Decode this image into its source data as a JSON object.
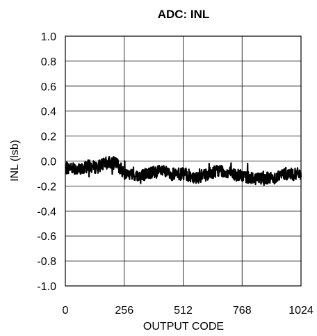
{
  "chart_data": {
    "type": "line",
    "title": "ADC: INL",
    "xlabel": "OUTPUT CODE",
    "ylabel": "INL (lsb)",
    "xlim": [
      0,
      1024
    ],
    "ylim": [
      -1.0,
      1.0
    ],
    "xticks": [
      0,
      256,
      512,
      768,
      1024
    ],
    "xtick_labels": [
      "0",
      "256",
      "512",
      "768",
      "1024"
    ],
    "yticks": [
      1.0,
      0.8,
      0.6,
      0.4,
      0.2,
      0.0,
      -0.2,
      -0.4,
      -0.6,
      -0.8,
      -1.0
    ],
    "ytick_labels": [
      "1.0",
      "0.8",
      "0.6",
      "0.4",
      "0.2",
      "0.0",
      "-0.2",
      "-0.4",
      "-0.6",
      "-0.8",
      "-1.0"
    ],
    "grid": true,
    "legend": "none",
    "series": [
      {
        "color": "#000000",
        "x": [
          0,
          32,
          64,
          96,
          128,
          160,
          192,
          224,
          256,
          288,
          320,
          352,
          384,
          416,
          448,
          480,
          512,
          544,
          576,
          608,
          640,
          672,
          704,
          736,
          768,
          800,
          832,
          864,
          896,
          928,
          960,
          992,
          1024
        ],
        "y": [
          -0.06,
          -0.05,
          -0.07,
          -0.04,
          -0.05,
          -0.03,
          -0.01,
          -0.02,
          -0.1,
          -0.11,
          -0.12,
          -0.1,
          -0.09,
          -0.08,
          -0.1,
          -0.11,
          -0.1,
          -0.12,
          -0.13,
          -0.11,
          -0.09,
          -0.07,
          -0.09,
          -0.11,
          -0.12,
          -0.13,
          -0.14,
          -0.13,
          -0.14,
          -0.12,
          -0.1,
          -0.11,
          -0.1
        ],
        "noise": 0.05
      }
    ]
  }
}
